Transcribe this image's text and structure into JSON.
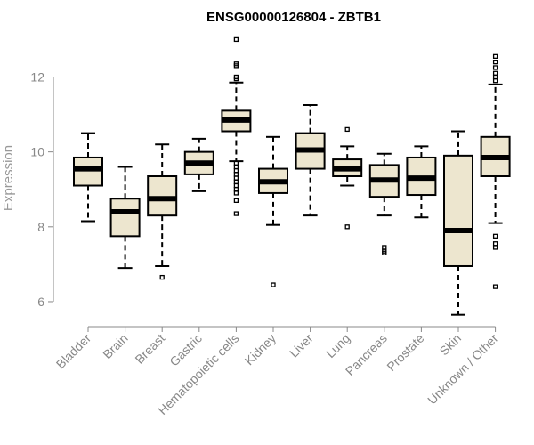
{
  "chart_data": {
    "type": "boxplot",
    "title": "ENSG00000126804 - ZBTB1",
    "xlabel": "",
    "ylabel": "Expression",
    "ylim": [
      5.5,
      13.2
    ],
    "yticks": [
      6,
      8,
      10,
      12
    ],
    "colors": {
      "box_fill": "#ede6cf",
      "box_stroke": "#000000",
      "axis": "#888888"
    },
    "categories": [
      "Bladder",
      "Brain",
      "Breast",
      "Gastric",
      "Hematopoietic cells",
      "Kidney",
      "Liver",
      "Lung",
      "Pancreas",
      "Prostate",
      "Skin",
      "Unknown / Other"
    ],
    "boxes": [
      {
        "name": "Bladder",
        "whisker_low": 8.15,
        "q1": 9.1,
        "median": 9.55,
        "q3": 9.85,
        "whisker_high": 10.5,
        "outliers": []
      },
      {
        "name": "Brain",
        "whisker_low": 6.9,
        "q1": 7.75,
        "median": 8.4,
        "q3": 8.75,
        "whisker_high": 9.6,
        "outliers": []
      },
      {
        "name": "Breast",
        "whisker_low": 6.95,
        "q1": 8.3,
        "median": 8.75,
        "q3": 9.35,
        "whisker_high": 10.2,
        "outliers": [
          6.65
        ]
      },
      {
        "name": "Gastric",
        "whisker_low": 8.95,
        "q1": 9.4,
        "median": 9.7,
        "q3": 10.0,
        "whisker_high": 10.35,
        "outliers": []
      },
      {
        "name": "Hematopoietic cells",
        "whisker_low": 9.75,
        "q1": 10.55,
        "median": 10.85,
        "q3": 11.1,
        "whisker_high": 11.85,
        "outliers": [
          13.0,
          12.35,
          12.3,
          12.0,
          11.95,
          9.7,
          9.6,
          9.5,
          9.4,
          9.3,
          9.2,
          9.1,
          9.0,
          8.9,
          8.7,
          8.35
        ]
      },
      {
        "name": "Kidney",
        "whisker_low": 8.05,
        "q1": 8.9,
        "median": 9.2,
        "q3": 9.55,
        "whisker_high": 10.4,
        "outliers": [
          6.45
        ]
      },
      {
        "name": "Liver",
        "whisker_low": 8.3,
        "q1": 9.55,
        "median": 10.05,
        "q3": 10.5,
        "whisker_high": 11.25,
        "outliers": []
      },
      {
        "name": "Lung",
        "whisker_low": 9.1,
        "q1": 9.35,
        "median": 9.55,
        "q3": 9.8,
        "whisker_high": 10.15,
        "outliers": [
          10.6,
          8.0
        ]
      },
      {
        "name": "Pancreas",
        "whisker_low": 8.3,
        "q1": 8.8,
        "median": 9.25,
        "q3": 9.65,
        "whisker_high": 9.95,
        "outliers": [
          7.45,
          7.35,
          7.3
        ]
      },
      {
        "name": "Prostate",
        "whisker_low": 8.25,
        "q1": 8.85,
        "median": 9.3,
        "q3": 9.85,
        "whisker_high": 10.15,
        "outliers": []
      },
      {
        "name": "Skin",
        "whisker_low": 5.65,
        "q1": 6.95,
        "median": 7.9,
        "q3": 9.9,
        "whisker_high": 10.55,
        "outliers": []
      },
      {
        "name": "Unknown / Other",
        "whisker_low": 8.1,
        "q1": 9.35,
        "median": 9.85,
        "q3": 10.4,
        "whisker_high": 11.8,
        "outliers": [
          12.55,
          12.4,
          12.25,
          12.1,
          12.0,
          11.9,
          7.75,
          7.55,
          7.45,
          6.4
        ]
      }
    ]
  }
}
